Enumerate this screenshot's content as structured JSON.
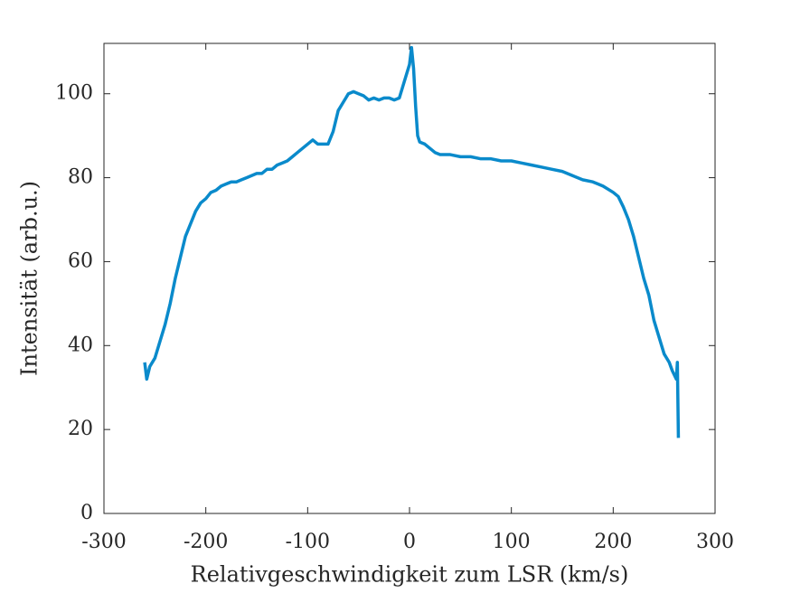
{
  "chart_data": {
    "type": "line",
    "xlabel": "Relativgeschwindigkeit zum LSR (km/s)",
    "ylabel": "Intensität (arb.u.)",
    "x": [
      -260,
      -258,
      -255,
      -250,
      -245,
      -240,
      -235,
      -230,
      -225,
      -220,
      -215,
      -210,
      -205,
      -200,
      -195,
      -190,
      -185,
      -180,
      -175,
      -170,
      -165,
      -160,
      -155,
      -150,
      -145,
      -140,
      -135,
      -130,
      -125,
      -120,
      -115,
      -110,
      -105,
      -100,
      -95,
      -90,
      -85,
      -80,
      -75,
      -70,
      -65,
      -60,
      -55,
      -50,
      -45,
      -40,
      -35,
      -30,
      -25,
      -20,
      -15,
      -10,
      -5,
      0,
      2,
      4,
      6,
      8,
      10,
      15,
      20,
      25,
      30,
      40,
      50,
      60,
      70,
      80,
      90,
      100,
      110,
      120,
      130,
      140,
      150,
      160,
      170,
      180,
      185,
      190,
      200,
      205,
      210,
      215,
      220,
      225,
      230,
      235,
      240,
      245,
      250,
      255,
      258,
      262,
      263,
      264
    ],
    "series": [
      {
        "name": "Intensität",
        "color": "#0a8acb",
        "values": [
          36,
          32,
          35,
          37,
          41,
          45,
          50,
          56,
          61,
          66,
          69,
          72,
          74,
          75,
          76.5,
          77,
          78,
          78.5,
          79,
          79,
          79.5,
          80,
          80.5,
          81,
          81,
          82,
          82,
          83,
          83.5,
          84,
          85,
          86,
          87,
          88,
          89,
          88,
          88,
          88,
          91,
          96,
          98,
          100,
          100.5,
          100,
          99.5,
          98.5,
          99,
          98.5,
          99,
          99,
          98.5,
          99,
          103,
          107,
          111,
          106,
          97,
          90,
          88.5,
          88,
          87,
          86,
          85.5,
          85.5,
          85,
          85,
          84.5,
          84.5,
          84,
          84,
          83.5,
          83,
          82.5,
          82,
          81.5,
          80.5,
          79.5,
          79,
          78.5,
          78,
          76.5,
          75.5,
          73,
          70,
          66,
          61,
          56,
          52,
          46,
          42,
          38,
          36,
          34,
          32,
          36,
          18
        ]
      }
    ],
    "xlim": [
      -300,
      300
    ],
    "xticks": [
      -300,
      -200,
      -100,
      0,
      100,
      200,
      300
    ],
    "ylim": [
      0,
      112
    ],
    "yticks": [
      0,
      20,
      40,
      60,
      80,
      100
    ]
  }
}
